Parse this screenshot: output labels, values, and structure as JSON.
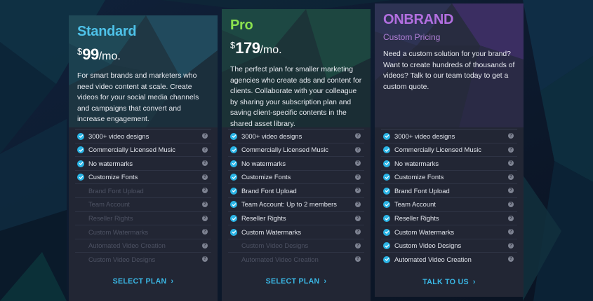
{
  "plans": [
    {
      "name": "Standard",
      "name_color": "#4ec2e9",
      "price_currency": "$",
      "price_amount": "99",
      "price_period": "/mo.",
      "description": "For smart brands and marketers who need video content at scale. Create videos for your social media channels and campaigns that convert and increase engagement.",
      "features": [
        {
          "label": "3000+ video designs",
          "included": true
        },
        {
          "label": "Commercially Licensed Music",
          "included": true
        },
        {
          "label": "No watermarks",
          "included": true
        },
        {
          "label": "Customize Fonts",
          "included": true
        },
        {
          "label": "Brand Font Upload",
          "included": false
        },
        {
          "label": "Team Account",
          "included": false
        },
        {
          "label": "Reseller Rights",
          "included": false
        },
        {
          "label": "Custom Watermarks",
          "included": false
        },
        {
          "label": "Automated Video Creation",
          "included": false
        },
        {
          "label": "Custom Video Designs",
          "included": false
        }
      ],
      "cta": "SELECT PLAN",
      "help_icon": "?",
      "chevron": "›"
    },
    {
      "name": "Pro",
      "name_color": "#8be24f",
      "price_currency": "$",
      "price_amount": "179",
      "price_period": "/mo.",
      "description": "The perfect plan for smaller marketing agencies who create ads and content for clients. Collaborate with your colleague by sharing your subscription plan and saving client-specific contents in the shared asset library.",
      "features": [
        {
          "label": "3000+ video designs",
          "included": true
        },
        {
          "label": "Commercially Licensed Music",
          "included": true
        },
        {
          "label": "No watermarks",
          "included": true
        },
        {
          "label": "Customize Fonts",
          "included": true
        },
        {
          "label": "Brand Font Upload",
          "included": true
        },
        {
          "label": "Team Account: Up to 2 members",
          "included": true
        },
        {
          "label": "Reseller Rights",
          "included": true
        },
        {
          "label": "Custom Watermarks",
          "included": true
        },
        {
          "label": "Custom Video Designs",
          "included": false
        },
        {
          "label": "Automated Video Creation",
          "included": false
        }
      ],
      "cta": "SELECT PLAN",
      "help_icon": "?",
      "chevron": "›"
    },
    {
      "name": "ONBRAND",
      "name_color": "#b26fe0",
      "subtitle": "Custom Pricing",
      "subtitle_color": "#b27fd8",
      "description": "Need a custom solution for your brand? Want to create hundreds of thousands of videos? Talk to our team today to get a custom quote.",
      "features": [
        {
          "label": "3000+ video designs",
          "included": true
        },
        {
          "label": "Commercially Licensed Music",
          "included": true
        },
        {
          "label": "No watermarks",
          "included": true
        },
        {
          "label": "Customize Fonts",
          "included": true
        },
        {
          "label": "Brand Font Upload",
          "included": true
        },
        {
          "label": "Team Account",
          "included": true
        },
        {
          "label": "Reseller Rights",
          "included": true
        },
        {
          "label": "Custom Watermarks",
          "included": true
        },
        {
          "label": "Custom Video Designs",
          "included": true
        },
        {
          "label": "Automated Video Creation",
          "included": true
        }
      ],
      "cta": "TALK TO US",
      "help_icon": "?",
      "chevron": "›"
    }
  ],
  "colors": {
    "check": "#2bb5e6",
    "cta": "#3ab8e6",
    "card_bg": "#222634",
    "page_bg": "#0d1220"
  },
  "icons": {
    "feature_included": "check-circle-icon",
    "feature_help": "question-circle-icon",
    "cta_arrow": "chevron-right-icon"
  }
}
